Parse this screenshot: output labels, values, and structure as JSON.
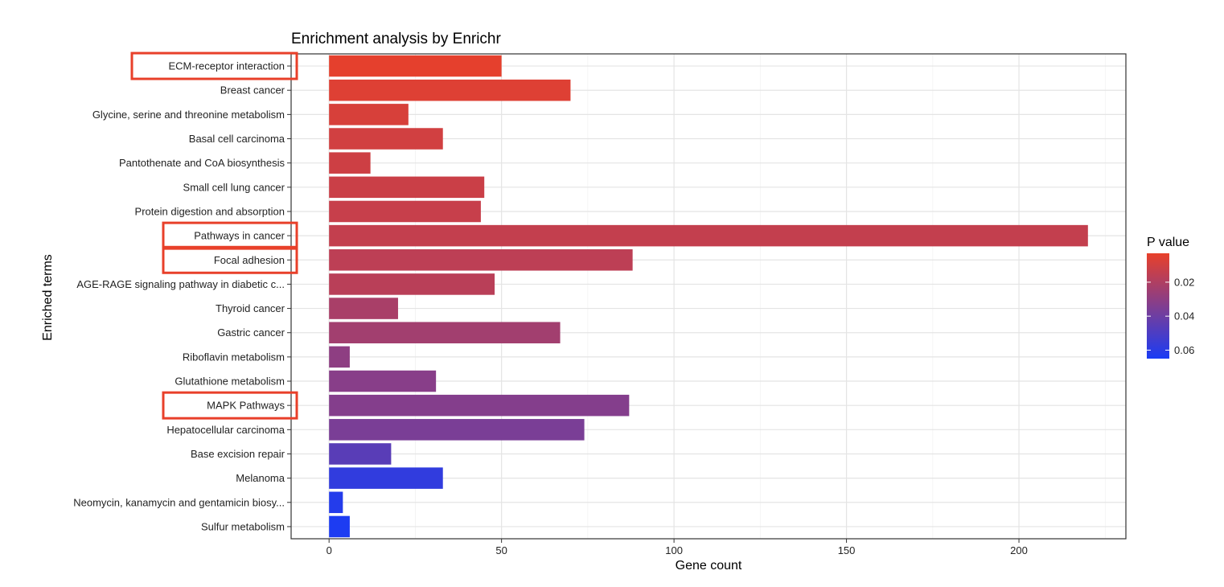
{
  "chart_data": {
    "type": "bar",
    "orientation": "horizontal",
    "title": "Enrichment analysis by Enrichr",
    "xlabel": "Gene count",
    "ylabel": "Enriched terms",
    "xlim": [
      -11,
      231
    ],
    "xticks": [
      0,
      50,
      100,
      150,
      200
    ],
    "grid": true,
    "legend": {
      "title": "P value",
      "position": "right",
      "type": "colorbar",
      "ticks": [
        0.02,
        0.04,
        0.06
      ],
      "tick_labels": [
        "0.02",
        "0.04",
        "0.06"
      ],
      "range": [
        0.003,
        0.065
      ],
      "low_color": "#e8402a",
      "high_color": "#1a3cf5"
    },
    "categories": [
      "ECM-receptor interaction",
      "Breast cancer",
      "Glycine, serine and threonine metabolism",
      "Basal cell carcinoma",
      "Pantothenate and CoA biosynthesis",
      "Small cell lung cancer",
      "Protein digestion and absorption",
      "Pathways in cancer",
      "Focal adhesion",
      "AGE-RAGE signaling pathway in diabetic c...",
      "Thyroid cancer",
      "Gastric cancer",
      "Riboflavin metabolism",
      "Glutathione metabolism",
      "MAPK Pathways",
      "Hepatocellular carcinoma",
      "Base excision repair",
      "Melanoma",
      "Neomycin, kanamycin and gentamicin biosy...",
      "Sulfur metabolism"
    ],
    "values": [
      50,
      70,
      23,
      33,
      12,
      45,
      44,
      220,
      88,
      48,
      20,
      67,
      6,
      31,
      87,
      74,
      18,
      33,
      4,
      6
    ],
    "p_values": [
      0.004,
      0.006,
      0.008,
      0.01,
      0.011,
      0.012,
      0.013,
      0.014,
      0.016,
      0.017,
      0.022,
      0.024,
      0.03,
      0.032,
      0.033,
      0.036,
      0.046,
      0.058,
      0.062,
      0.064
    ],
    "highlighted": [
      "ECM-receptor interaction",
      "Pathways in cancer",
      "Focal adhesion",
      "MAPK Pathways"
    ],
    "highlight_color": "#e8402a"
  }
}
